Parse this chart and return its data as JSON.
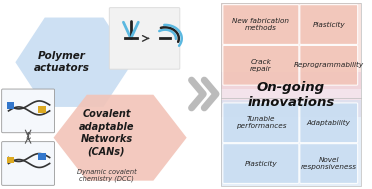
{
  "fig_width": 3.72,
  "fig_height": 1.89,
  "dpi": 100,
  "bg_color": "#ffffff",
  "hex_top_color": "#c8ddf2",
  "hex_top_text": "Polymer\nactuators",
  "hex_bot_color": "#f2c4b8",
  "hex_bot_text": "Covalent\nadaptable\nNetworks\n(CANs)",
  "hex_bot_sub": "Dynamic covalent\nchemistry (DCC)",
  "right_panel_top_color": "#f2c4b8",
  "right_panel_bot_color": "#c8ddf2",
  "top_boxes": [
    {
      "text": "New fabrication\nmethods",
      "col": 0,
      "row": 0
    },
    {
      "text": "Plasticity",
      "col": 1,
      "row": 0
    },
    {
      "text": "Crack\nrepair",
      "col": 0,
      "row": 1
    },
    {
      "text": "Reprogrammability",
      "col": 1,
      "row": 1
    }
  ],
  "center_label": "On-going\ninnovations",
  "bot_boxes": [
    {
      "text": "Tunable\nperformances",
      "col": 0,
      "row": 0
    },
    {
      "text": "Adaptability",
      "col": 1,
      "row": 0
    },
    {
      "text": "Plasticity",
      "col": 0,
      "row": 1
    },
    {
      "text": "Novel\nresponsiveness",
      "col": 1,
      "row": 1
    }
  ]
}
